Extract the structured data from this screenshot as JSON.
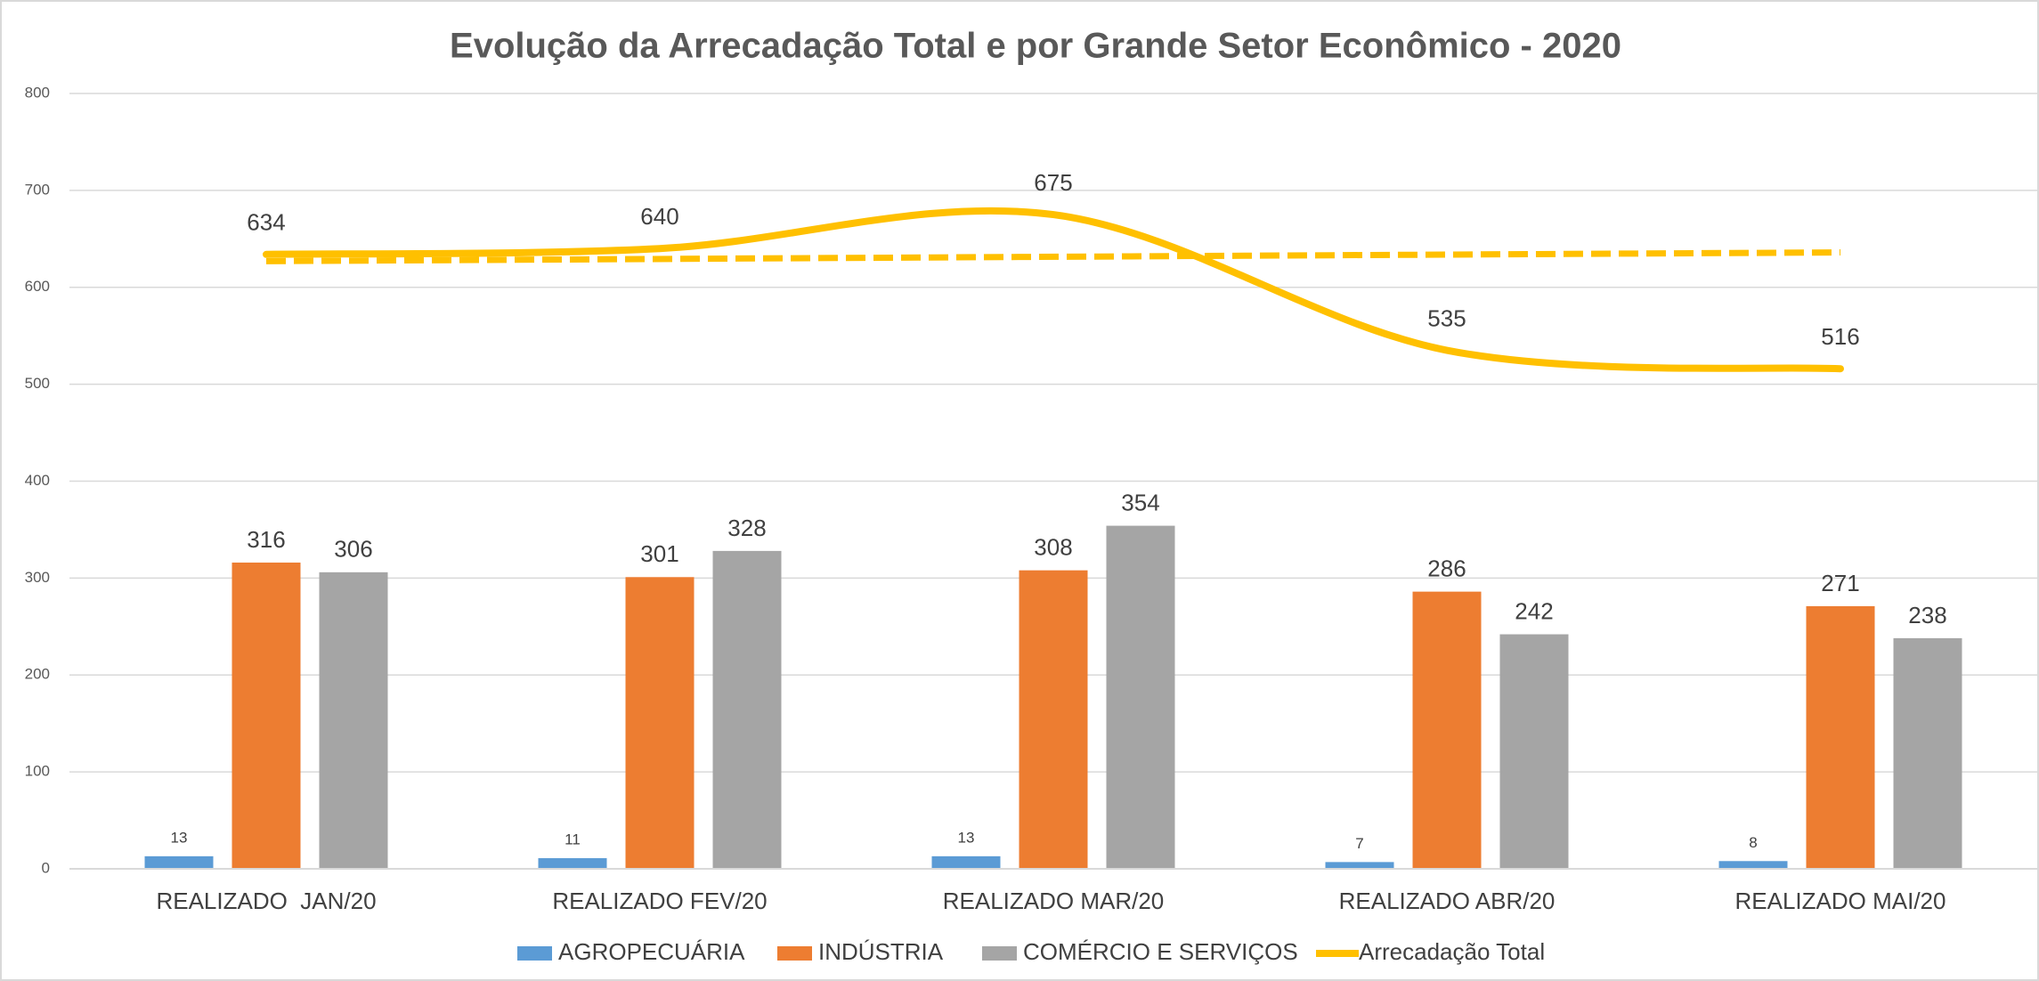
{
  "chart_data": {
    "type": "bar",
    "title": "Evolução da Arrecadação Total e por Grande Setor Econômico - 2020",
    "categories": [
      "REALIZADO  JAN/20",
      "REALIZADO FEV/20",
      "REALIZADO MAR/20",
      "REALIZADO ABR/20",
      "REALIZADO MAI/20"
    ],
    "series": [
      {
        "name": "AGROPECUÁRIA",
        "color": "#5b9bd5",
        "values": [
          13,
          11,
          13,
          7,
          8
        ]
      },
      {
        "name": "INDÚSTRIA",
        "color": "#ed7d31",
        "values": [
          316,
          301,
          308,
          286,
          271
        ]
      },
      {
        "name": "COMÉRCIO E SERVIÇOS",
        "color": "#a5a5a5",
        "values": [
          306,
          328,
          354,
          242,
          238
        ]
      },
      {
        "name": "Arrecadação Total",
        "color": "#ffc000",
        "type": "line",
        "smooth": true,
        "values": [
          634,
          640,
          675,
          535,
          516
        ]
      }
    ],
    "trend": {
      "color": "#ffc000",
      "dashed": true,
      "values": [
        627,
        636
      ]
    },
    "ylim": [
      0,
      800
    ],
    "yticks": [
      0,
      100,
      200,
      300,
      400,
      500,
      600,
      700,
      800
    ],
    "grid": true,
    "legend": "bottom"
  }
}
